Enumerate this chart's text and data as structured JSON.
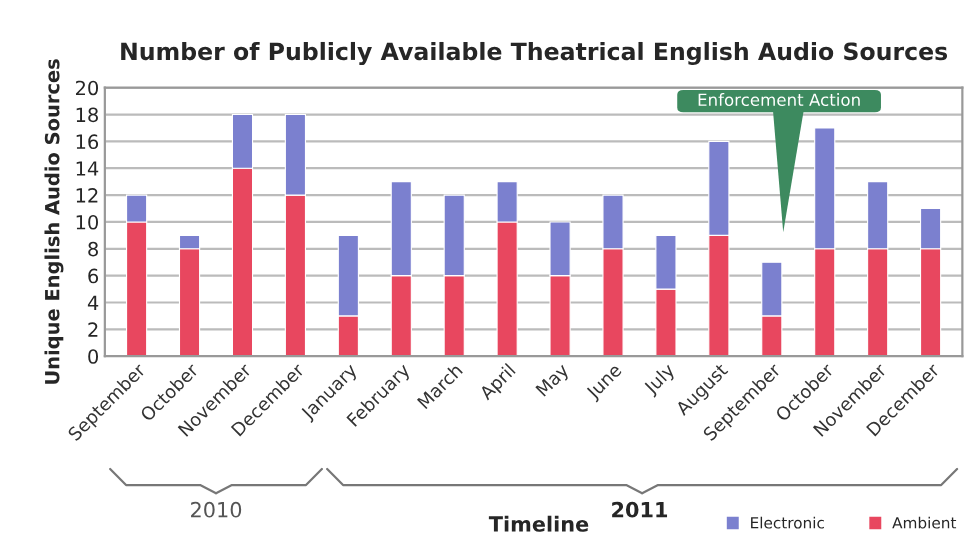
{
  "chart_data": {
    "type": "bar",
    "title": "Number of Publicly Available Theatrical English Audio Sources",
    "xlabel": "Timeline",
    "ylabel": "Unique English Audio Sources",
    "categories": [
      "September",
      "October",
      "November",
      "December",
      "January",
      "February",
      "March",
      "April",
      "May",
      "June",
      "July",
      "August",
      "September",
      "October",
      "November",
      "December"
    ],
    "stacked": true,
    "series": [
      {
        "name": "Ambient",
        "color": "#e8475f",
        "values": [
          10,
          8,
          14,
          12,
          3,
          6,
          6,
          10,
          6,
          8,
          5,
          9,
          3,
          8,
          8,
          8
        ]
      },
      {
        "name": "Electronic",
        "color": "#7b80cf",
        "values": [
          2,
          1,
          4,
          6,
          6,
          7,
          6,
          3,
          4,
          4,
          4,
          7,
          4,
          9,
          5,
          3
        ]
      }
    ],
    "ylim": [
      0,
      20
    ],
    "yticks": [
      0,
      2,
      4,
      6,
      8,
      10,
      12,
      14,
      16,
      18,
      20
    ],
    "grid": "y",
    "legend": "bottom right",
    "annotations": [
      "Enforcement Action",
      "2010",
      "2011"
    ]
  }
}
